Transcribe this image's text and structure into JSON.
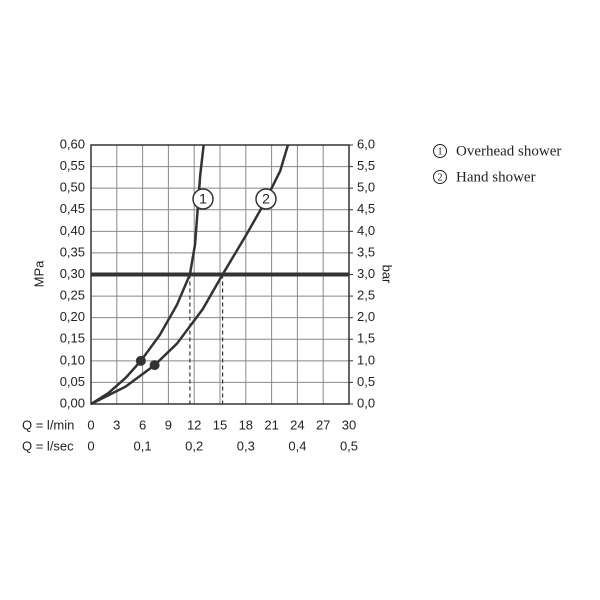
{
  "chart_data": {
    "type": "line",
    "xlabel": "Q = l/min",
    "x2label": "Q = l/sec",
    "ylabel": "MPa",
    "y2label": "bar",
    "xlim": [
      0,
      30
    ],
    "xticks": [
      0,
      3,
      6,
      9,
      12,
      15,
      18,
      21,
      24,
      27,
      30
    ],
    "x2lim": [
      0,
      0.5
    ],
    "x2ticks": [
      0,
      {
        "value": 0.1,
        "label": "0,1"
      },
      {
        "value": 0.2,
        "label": "0,2"
      },
      {
        "value": 0.3,
        "label": "0,3"
      },
      {
        "value": 0.4,
        "label": "0,4"
      },
      {
        "value": 0.5,
        "label": "0,5"
      }
    ],
    "ylim": [
      0,
      0.6
    ],
    "yticks": [
      {
        "value": 0,
        "label": "0,00"
      },
      {
        "value": 0.05,
        "label": "0,05"
      },
      {
        "value": 0.1,
        "label": "0,10"
      },
      {
        "value": 0.15,
        "label": "0,15"
      },
      {
        "value": 0.2,
        "label": "0,20"
      },
      {
        "value": 0.25,
        "label": "0,25"
      },
      {
        "value": 0.3,
        "label": "0,30"
      },
      {
        "value": 0.35,
        "label": "0,35"
      },
      {
        "value": 0.4,
        "label": "0,40"
      },
      {
        "value": 0.45,
        "label": "0,45"
      },
      {
        "value": 0.5,
        "label": "0,50"
      },
      {
        "value": 0.55,
        "label": "0,55"
      },
      {
        "value": 0.6,
        "label": "0,60"
      }
    ],
    "y2lim": [
      0,
      6
    ],
    "y2ticks": [
      {
        "value": 0,
        "label": "0,0"
      },
      {
        "value": 0.5,
        "label": "0,5"
      },
      {
        "value": 1,
        "label": "1,0"
      },
      {
        "value": 1.5,
        "label": "1,5"
      },
      {
        "value": 2,
        "label": "2,0"
      },
      {
        "value": 2.5,
        "label": "2,5"
      },
      {
        "value": 3,
        "label": "3,0"
      },
      {
        "value": 3.5,
        "label": "3,5"
      },
      {
        "value": 4,
        "label": "4,0"
      },
      {
        "value": 4.5,
        "label": "4,5"
      },
      {
        "value": 5,
        "label": "5,0"
      },
      {
        "value": 5.5,
        "label": "5,5"
      },
      {
        "value": 6,
        "label": "6,0"
      }
    ],
    "grid": true,
    "reference_line": 0.3,
    "series": [
      {
        "label": "1",
        "name": "Overhead shower",
        "color": "#333333",
        "x": [
          0,
          2,
          4,
          5.8,
          8,
          10,
          11.5,
          12.1,
          12.4,
          12.7,
          13.1
        ],
        "values": [
          0,
          0.025,
          0.06,
          0.1,
          0.16,
          0.23,
          0.3,
          0.37,
          0.45,
          0.53,
          0.6
        ],
        "point": {
          "x": 5.8,
          "y": 0.1
        },
        "drop": {
          "x": 11.5,
          "y": 0.3
        }
      },
      {
        "label": "2",
        "name": "Hand shower",
        "color": "#333333",
        "x": [
          0,
          4,
          7.4,
          10,
          13,
          15.3,
          18,
          20,
          22,
          22.9
        ],
        "values": [
          0,
          0.04,
          0.09,
          0.14,
          0.22,
          0.3,
          0.39,
          0.46,
          0.54,
          0.6
        ],
        "point": {
          "x": 7.4,
          "y": 0.09
        },
        "drop": {
          "x": 15.3,
          "y": 0.3
        }
      }
    ]
  }
}
